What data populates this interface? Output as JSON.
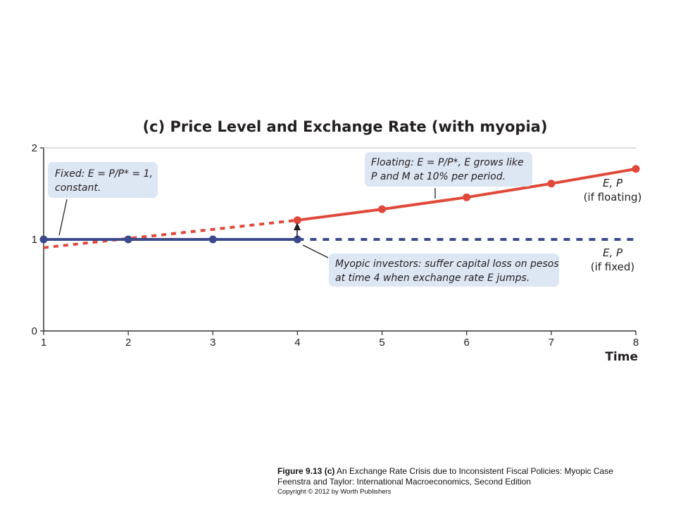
{
  "chart_data": {
    "type": "line",
    "title": "(c) Price Level and Exchange Rate (with myopia)",
    "xlabel": "Time",
    "ylabel": "",
    "xlim": [
      1,
      8
    ],
    "ylim": [
      0,
      2
    ],
    "x_ticks": [
      "1",
      "2",
      "3",
      "4",
      "5",
      "6",
      "7",
      "8"
    ],
    "y_ticks": [
      "0",
      "1",
      "2"
    ],
    "grid": false,
    "series": [
      {
        "name": "E, P (if floating)",
        "color": "#e0483a",
        "style": "solid",
        "x": [
          4,
          5,
          6,
          7,
          8
        ],
        "y": [
          1.21,
          1.33,
          1.46,
          1.61,
          1.77
        ],
        "markers": true
      },
      {
        "name": "",
        "color": "#e0483a",
        "style": "dotted",
        "x": [
          1,
          4
        ],
        "y": [
          0.91,
          1.21
        ],
        "markers": false
      },
      {
        "name": "",
        "color": "#3a4a8c",
        "style": "solid",
        "x": [
          1,
          2,
          3,
          4
        ],
        "y": [
          1,
          1,
          1,
          1
        ],
        "markers": true
      },
      {
        "name": "E, P (if fixed)",
        "color": "#3a4a8c",
        "style": "dashed",
        "x": [
          4,
          8
        ],
        "y": [
          1,
          1
        ],
        "markers": false
      }
    ],
    "series_labels": {
      "floating_line1": "E, P",
      "floating_line2": "(if floating)",
      "fixed_line1": "E, P",
      "fixed_line2": "(if fixed)"
    },
    "annotations": [
      {
        "id": "fixed",
        "lines": [
          "Fixed: E = P/P* = 1,",
          "constant."
        ]
      },
      {
        "id": "floating",
        "lines": [
          "Floating: E = P/P*, E grows like",
          "P and M at 10% per period."
        ]
      },
      {
        "id": "myopic",
        "lines": [
          "Myopic investors: suffer capital loss on pesos",
          "at time 4 when exchange rate E jumps."
        ]
      }
    ],
    "colors": {
      "callout_bg": "#dde6f3",
      "axis": "#333333"
    }
  },
  "caption": {
    "figure_label": "Figure 9.13 (c)",
    "figure_text": "An Exchange Rate Crisis due to Inconsistent Fiscal Policies: Myopic Case",
    "source": "Feenstra and Taylor: International Macroeconomics, Second Edition",
    "copyright": "Copyright © 2012 by Worth Publishers"
  }
}
